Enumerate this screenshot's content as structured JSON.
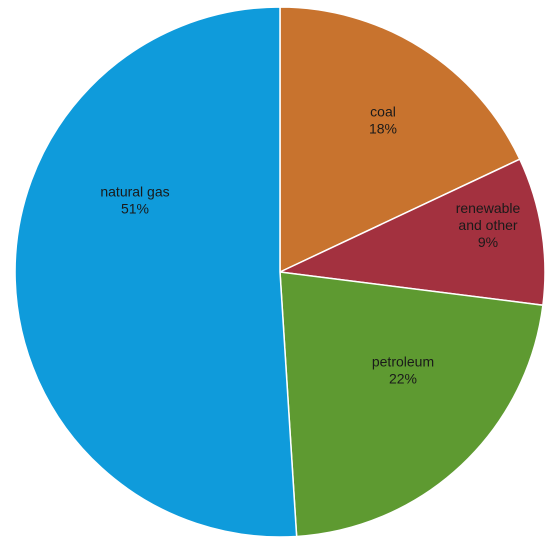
{
  "chart_data": {
    "type": "pie",
    "title": "",
    "slices": [
      {
        "key": "coal",
        "label_lines": [
          "coal",
          "18%"
        ],
        "value": 18,
        "color": "#C8732E"
      },
      {
        "key": "renewable-and-other",
        "label_lines": [
          "renewable",
          "and other",
          "9%"
        ],
        "value": 9,
        "color": "#A3313F"
      },
      {
        "key": "petroleum",
        "label_lines": [
          "petroleum",
          "22%"
        ],
        "value": 22,
        "color": "#5E9A31"
      },
      {
        "key": "natural-gas",
        "label_lines": [
          "natural gas",
          "51%"
        ],
        "value": 51,
        "color": "#0F9BDB"
      }
    ],
    "legend": "none"
  }
}
